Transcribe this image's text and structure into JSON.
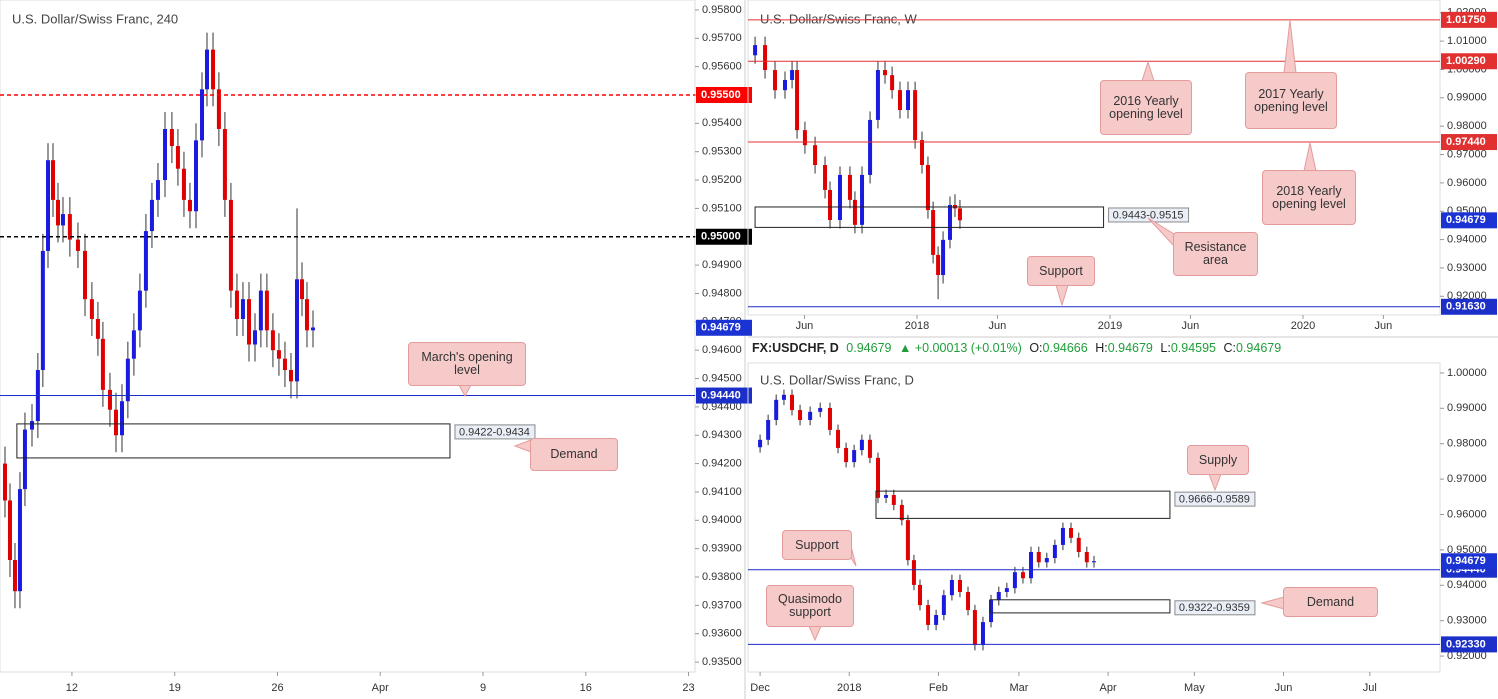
{
  "chart_data": [
    {
      "type": "candlestick",
      "title": "U.S. Dollar/Swiss Franc, 240",
      "up_color": "#1b1be0",
      "down_color": "#e00000",
      "x": [
        7.44,
        7.78,
        8.12,
        8.46,
        8.8,
        9.28,
        9.68,
        10.02,
        10.37,
        10.71,
        11.05,
        11.39,
        11.86,
        12.41,
        12.89,
        13.36,
        13.77,
        14.11,
        14.59,
        15.0,
        15.41,
        15.81,
        16.22,
        16.63,
        17.04,
        17.45,
        17.86,
        18.34,
        18.81,
        19.22,
        19.63,
        20.04,
        20.45,
        20.86,
        21.2,
        21.61,
        22.01,
        22.42,
        22.83,
        23.24,
        23.65,
        24.06,
        24.47,
        24.87,
        25.28,
        25.69,
        26.1,
        26.51,
        26.92,
        27.33,
        27.67,
        28.01,
        28.42
      ],
      "open": [
        0.942,
        0.9407,
        0.9386,
        0.9375,
        0.9411,
        0.9432,
        0.9435,
        0.9453,
        0.9495,
        0.9527,
        0.9513,
        0.9504,
        0.9508,
        0.9499,
        0.9495,
        0.9478,
        0.9471,
        0.9464,
        0.9446,
        0.9439,
        0.943,
        0.9442,
        0.9457,
        0.9467,
        0.9481,
        0.9502,
        0.9513,
        0.952,
        0.9538,
        0.9532,
        0.9524,
        0.9513,
        0.9509,
        0.9534,
        0.9552,
        0.9566,
        0.9552,
        0.9538,
        0.9513,
        0.9481,
        0.9471,
        0.9478,
        0.9462,
        0.9467,
        0.9481,
        0.9467,
        0.946,
        0.9457,
        0.9453,
        0.9449,
        0.9485,
        0.9478,
        0.9467
      ],
      "high": [
        0.9426,
        0.9413,
        0.9392,
        0.9417,
        0.9438,
        0.9441,
        0.9459,
        0.9501,
        0.9533,
        0.9533,
        0.9519,
        0.9514,
        0.9514,
        0.9505,
        0.9501,
        0.9484,
        0.9477,
        0.947,
        0.9452,
        0.9445,
        0.9448,
        0.9463,
        0.9473,
        0.9487,
        0.9508,
        0.9519,
        0.9526,
        0.9544,
        0.9544,
        0.9538,
        0.953,
        0.9519,
        0.954,
        0.9558,
        0.9572,
        0.9572,
        0.9558,
        0.9544,
        0.9519,
        0.9487,
        0.9484,
        0.9484,
        0.9473,
        0.9487,
        0.9487,
        0.9473,
        0.9466,
        0.9463,
        0.9459,
        0.951,
        0.9491,
        0.9484,
        0.9474
      ],
      "low": [
        0.9401,
        0.938,
        0.9369,
        0.9369,
        0.9405,
        0.9426,
        0.9429,
        0.9447,
        0.9489,
        0.9507,
        0.9498,
        0.9498,
        0.9493,
        0.9489,
        0.9472,
        0.9465,
        0.9458,
        0.944,
        0.9433,
        0.9424,
        0.9424,
        0.9436,
        0.9451,
        0.9461,
        0.9475,
        0.9496,
        0.9507,
        0.9514,
        0.9526,
        0.9518,
        0.9507,
        0.9503,
        0.9503,
        0.9528,
        0.9546,
        0.9546,
        0.9532,
        0.9507,
        0.9475,
        0.9465,
        0.9465,
        0.9456,
        0.9456,
        0.9461,
        0.9461,
        0.9454,
        0.9451,
        0.9447,
        0.9443,
        0.9443,
        0.9472,
        0.9461,
        0.9461
      ],
      "close": [
        0.9407,
        0.9386,
        0.9375,
        0.9411,
        0.9432,
        0.9435,
        0.9453,
        0.9495,
        0.9527,
        0.9513,
        0.9504,
        0.9508,
        0.9499,
        0.9495,
        0.9478,
        0.9471,
        0.9464,
        0.9446,
        0.9439,
        0.943,
        0.9442,
        0.9457,
        0.9467,
        0.9481,
        0.9502,
        0.9513,
        0.952,
        0.9538,
        0.9532,
        0.9524,
        0.9513,
        0.9509,
        0.9534,
        0.9552,
        0.9566,
        0.9552,
        0.9538,
        0.9513,
        0.9481,
        0.9471,
        0.9478,
        0.9462,
        0.9467,
        0.9481,
        0.9467,
        0.946,
        0.9457,
        0.9453,
        0.9449,
        0.9485,
        0.9478,
        0.9467,
        0.9468
      ],
      "xlim": [
        7.1,
        54.44
      ],
      "xticks": [
        12,
        19,
        26,
        {
          "value": 33,
          "label": "Apr"
        },
        {
          "value": 40,
          "label": "9"
        },
        {
          "value": 47,
          "label": "16"
        },
        {
          "value": 54,
          "label": "23"
        }
      ],
      "ylim": [
        0.93465,
        0.95835
      ],
      "yticks": [
        {
          "value": 0.935,
          "label": "0.93500"
        },
        {
          "value": 0.936,
          "label": "0.93600"
        },
        {
          "value": 0.937,
          "label": "0.93700"
        },
        {
          "value": 0.938,
          "label": "0.93800"
        },
        {
          "value": 0.939,
          "label": "0.93900"
        },
        {
          "value": 0.94,
          "label": "0.94000"
        },
        {
          "value": 0.941,
          "label": "0.94100"
        },
        {
          "value": 0.942,
          "label": "0.94200"
        },
        {
          "value": 0.943,
          "label": "0.94300"
        },
        {
          "value": 0.944,
          "label": "0.94400"
        },
        {
          "value": 0.945,
          "label": "0.94500"
        },
        {
          "value": 0.946,
          "label": "0.94600"
        },
        {
          "value": 0.947,
          "label": "0.94700"
        },
        {
          "value": 0.948,
          "label": "0.94800"
        },
        {
          "value": 0.949,
          "label": "0.94900"
        },
        {
          "value": 0.95,
          "label": "0.95000"
        },
        {
          "value": 0.951,
          "label": "0.95100"
        },
        {
          "value": 0.952,
          "label": "0.95200"
        },
        {
          "value": 0.953,
          "label": "0.95300"
        },
        {
          "value": 0.954,
          "label": "0.95400"
        },
        {
          "value": 0.955,
          "label": "0.95500"
        },
        {
          "value": 0.956,
          "label": "0.95600"
        },
        {
          "value": 0.957,
          "label": "0.95700"
        },
        {
          "value": 0.958,
          "label": "0.95800"
        }
      ],
      "levels": [
        {
          "value": 0.955,
          "label": "0.95500",
          "color": "#ff0000",
          "dash": true,
          "line": true
        },
        {
          "value": 0.95,
          "label": "0.95000",
          "color": "#000000",
          "dash": true,
          "line": true
        },
        {
          "value": 0.9444,
          "label": "0.94440",
          "color": "#1c2fc8",
          "dash": false,
          "line": true
        },
        {
          "value": 0.94679,
          "label": "0.94679",
          "color": "#1c33d4",
          "dash": false,
          "line": false
        }
      ],
      "zones": [
        {
          "low": 0.9422,
          "high": 0.9434,
          "x0": 8.25,
          "x1": 37.75,
          "label": "0.9422-0.9434"
        }
      ],
      "annotations": [
        "March's opening level",
        "Demand"
      ]
    },
    {
      "type": "candlestick",
      "title": "U.S. Dollar/Swiss Franc, W",
      "up_color": "#1b1be0",
      "down_color": "#e00000",
      "x": [
        1.93,
        2.55,
        3.17,
        3.79,
        4.23,
        4.54,
        5.03,
        5.66,
        6.28,
        6.59,
        7.21,
        7.83,
        8.14,
        8.58,
        9.08,
        9.57,
        10.01,
        10.45,
        10.94,
        11.44,
        11.88,
        12.31,
        12.68,
        13.0,
        13.31,
        13.62,
        14.05,
        14.36,
        14.67
      ],
      "open": [
        1.005,
        1.0086,
        0.9998,
        0.9927,
        0.9963,
        0.9998,
        0.9786,
        0.9733,
        0.9663,
        0.9575,
        0.9469,
        0.9628,
        0.954,
        0.9452,
        0.9628,
        0.9822,
        0.9998,
        0.998,
        0.9927,
        0.9857,
        0.9927,
        0.9751,
        0.9663,
        0.9504,
        0.9346,
        0.9275,
        0.9399,
        0.9522,
        0.951
      ],
      "high": [
        1.0116,
        1.0116,
        1.0028,
        0.9993,
        1.0028,
        1.0028,
        0.9816,
        0.9763,
        0.9693,
        0.9605,
        0.9658,
        0.9658,
        0.957,
        0.9658,
        0.9852,
        1.0028,
        1.0028,
        1.001,
        0.9957,
        0.9957,
        0.9957,
        0.9781,
        0.9693,
        0.9534,
        0.9376,
        0.9429,
        0.9552,
        0.956,
        0.954
      ],
      "low": [
        1.002,
        0.9968,
        0.9897,
        0.9897,
        0.9933,
        0.9756,
        0.9703,
        0.9633,
        0.9545,
        0.9439,
        0.9439,
        0.951,
        0.9422,
        0.9422,
        0.9598,
        0.9792,
        0.995,
        0.9897,
        0.9827,
        0.9827,
        0.9721,
        0.9633,
        0.9474,
        0.9316,
        0.919,
        0.9245,
        0.9369,
        0.948,
        0.9438
      ],
      "close": [
        1.0086,
        0.9998,
        0.9927,
        0.9963,
        0.9998,
        0.9786,
        0.9733,
        0.9663,
        0.9575,
        0.9469,
        0.9628,
        0.954,
        0.9452,
        0.9628,
        0.9822,
        0.9998,
        0.998,
        0.9927,
        0.9857,
        0.9927,
        0.9751,
        0.9663,
        0.9504,
        0.9346,
        0.9275,
        0.9399,
        0.9522,
        0.951,
        0.9468
      ],
      "xlim": [
        1.49,
        44.52
      ],
      "xticks": [
        {
          "value": 5,
          "label": "Jun"
        },
        {
          "value": 12,
          "label": "2018"
        },
        {
          "value": 17,
          "label": "Jun"
        },
        {
          "value": 24,
          "label": "2019"
        },
        {
          "value": 29,
          "label": "Jun"
        },
        {
          "value": 36,
          "label": "2020"
        },
        {
          "value": 41,
          "label": "Jun"
        }
      ],
      "ylim": [
        0.9134,
        1.0245
      ],
      "yticks": [
        {
          "value": 0.92,
          "label": "0.92000"
        },
        {
          "value": 0.93,
          "label": "0.93000"
        },
        {
          "value": 0.94,
          "label": "0.94000"
        },
        {
          "value": 0.95,
          "label": "0.95000"
        },
        {
          "value": 0.96,
          "label": "0.96000"
        },
        {
          "value": 0.97,
          "label": "0.97000"
        },
        {
          "value": 0.98,
          "label": "0.98000"
        },
        {
          "value": 0.99,
          "label": "0.99000"
        },
        {
          "value": 1,
          "label": "1.00000"
        },
        {
          "value": 1.01,
          "label": "1.01000"
        },
        {
          "value": 1.02,
          "label": "1.02000"
        }
      ],
      "levels": [
        {
          "value": 1.0175,
          "label": "1.01750",
          "color": "#e03030",
          "dash": false,
          "line": true
        },
        {
          "value": 1.0029,
          "label": "1.00290",
          "color": "#e03030",
          "dash": false,
          "line": true
        },
        {
          "value": 0.9744,
          "label": "0.97440",
          "color": "#e03030",
          "dash": false,
          "line": true
        },
        {
          "value": 0.9163,
          "label": "0.91630",
          "color": "#1c2fc8",
          "dash": false,
          "line": true
        },
        {
          "value": 0.94679,
          "label": "0.94679",
          "color": "#1c33d4",
          "dash": false,
          "line": false
        }
      ],
      "zones": [
        {
          "low": 0.9443,
          "high": 0.9515,
          "x0": 1.93,
          "x1": 23.6,
          "label": "0.9443-0.9515"
        }
      ],
      "annotations": [
        "2016 Yearly opening level",
        "2017 Yearly opening level",
        "2018 Yearly opening level",
        "Resistance area",
        "Support"
      ]
    },
    {
      "type": "candlestick",
      "title": "U.S. Dollar/Swiss Franc, D",
      "up_color": "#1b1be0",
      "down_color": "#e00000",
      "x": [
        0,
        2.8,
        5.6,
        8.3,
        11.1,
        13.9,
        17.4,
        20.9,
        24.3,
        27.1,
        29.9,
        32.7,
        35.4,
        38.2,
        41.0,
        43.8,
        46.5,
        49.3,
        51.4,
        53.5,
        55.6,
        58.4,
        61.2,
        63.9,
        66.7,
        69.5,
        72.3,
        74.7,
        77.5,
        80.3,
        83.0,
        85.8,
        88.6,
        91.4,
        94.2,
        96.9,
        99.7,
        102.5,
        105.3,
        108.1,
        110.8,
        113.6,
        116.1
      ],
      "open": [
        0.979,
        0.9811,
        0.9867,
        0.9924,
        0.9938,
        0.9895,
        0.9867,
        0.989,
        0.9901,
        0.9839,
        0.9788,
        0.9748,
        0.9782,
        0.9811,
        0.976,
        0.9647,
        0.9655,
        0.9627,
        0.9584,
        0.9471,
        0.9401,
        0.9344,
        0.9288,
        0.9316,
        0.9372,
        0.9415,
        0.9381,
        0.933,
        0.9231,
        0.9296,
        0.9358,
        0.9381,
        0.9392,
        0.9437,
        0.942,
        0.9494,
        0.9465,
        0.9477,
        0.9514,
        0.9562,
        0.9534,
        0.9494,
        0.9465
      ],
      "high": [
        0.9826,
        0.9882,
        0.9939,
        0.9953,
        0.9953,
        0.991,
        0.9905,
        0.9916,
        0.9916,
        0.9854,
        0.9803,
        0.9797,
        0.9826,
        0.9826,
        0.9775,
        0.967,
        0.967,
        0.9642,
        0.9599,
        0.9486,
        0.9416,
        0.9359,
        0.9331,
        0.9387,
        0.943,
        0.943,
        0.9396,
        0.9345,
        0.9311,
        0.9373,
        0.9396,
        0.9407,
        0.9452,
        0.9452,
        0.9509,
        0.9509,
        0.9492,
        0.9529,
        0.9577,
        0.9577,
        0.9549,
        0.9509,
        0.9483
      ],
      "low": [
        0.9775,
        0.9796,
        0.9852,
        0.9909,
        0.988,
        0.9852,
        0.9852,
        0.9875,
        0.9824,
        0.9773,
        0.9733,
        0.9733,
        0.9767,
        0.9745,
        0.9632,
        0.9632,
        0.9612,
        0.9569,
        0.9456,
        0.9386,
        0.9329,
        0.9273,
        0.9273,
        0.9301,
        0.9357,
        0.9366,
        0.9315,
        0.9216,
        0.9216,
        0.9281,
        0.9343,
        0.9366,
        0.9377,
        0.9405,
        0.9405,
        0.945,
        0.945,
        0.9462,
        0.9499,
        0.9519,
        0.9479,
        0.945,
        0.945
      ],
      "close": [
        0.9811,
        0.9867,
        0.9924,
        0.9938,
        0.9895,
        0.9867,
        0.989,
        0.9901,
        0.9839,
        0.9788,
        0.9748,
        0.9782,
        0.9811,
        0.976,
        0.9647,
        0.9655,
        0.9627,
        0.9584,
        0.9471,
        0.9401,
        0.9344,
        0.9288,
        0.9316,
        0.9372,
        0.9415,
        0.9381,
        0.933,
        0.9231,
        0.9296,
        0.9358,
        0.9381,
        0.9392,
        0.9437,
        0.942,
        0.9494,
        0.9465,
        0.9477,
        0.9514,
        0.9562,
        0.9534,
        0.9494,
        0.9465,
        0.9468
      ],
      "xlim": [
        -4.2,
        236.4
      ],
      "xticks": [
        {
          "value": 0,
          "label": "Dec"
        },
        {
          "value": 31,
          "label": "2018"
        },
        {
          "value": 62,
          "label": "Feb"
        },
        {
          "value": 90,
          "label": "Mar"
        },
        {
          "value": 121,
          "label": "Apr"
        },
        {
          "value": 151,
          "label": "May"
        },
        {
          "value": 182,
          "label": "Jun"
        },
        {
          "value": 212,
          "label": "Jul"
        }
      ],
      "ylim": [
        0.9155,
        1.0028
      ],
      "yticks": [
        {
          "value": 0.92,
          "label": "0.92000"
        },
        {
          "value": 0.93,
          "label": "0.93000"
        },
        {
          "value": 0.94,
          "label": "0.94000"
        },
        {
          "value": 0.95,
          "label": "0.95000"
        },
        {
          "value": 0.96,
          "label": "0.96000"
        },
        {
          "value": 0.97,
          "label": "0.97000"
        },
        {
          "value": 0.98,
          "label": "0.98000"
        },
        {
          "value": 0.99,
          "label": "0.99000"
        },
        {
          "value": 1,
          "label": "1.00000"
        }
      ],
      "levels": [
        {
          "value": 0.9444,
          "label": "0.94440",
          "color": "#1c2fc8",
          "dash": false,
          "line": true
        },
        {
          "value": 0.9233,
          "label": "0.92330",
          "color": "#1c2fc8",
          "dash": false,
          "line": true
        },
        {
          "value": 0.94679,
          "label": "0.94679",
          "color": "#1c33d4",
          "dash": false,
          "line": false
        }
      ],
      "zones": [
        {
          "low": 0.9589,
          "high": 0.9666,
          "x0": 40.3,
          "x1": 142.5,
          "label": "0.9666-0.9589"
        },
        {
          "low": 0.9322,
          "high": 0.9359,
          "x0": 79.9,
          "x1": 142.5,
          "label": "0.9322-0.9359"
        }
      ],
      "annotations": [
        "Supply",
        "Support",
        "Quasimodo support",
        "Demand"
      ]
    }
  ],
  "info_bar": {
    "symbol": "FX:USDCHF, D",
    "last": "0.94679",
    "change": "▲ +0.00013 (+0.01%)",
    "open": {
      "label": "O:",
      "value": "0.94666"
    },
    "high": {
      "label": "H:",
      "value": "0.94679"
    },
    "low": {
      "label": "L:",
      "value": "0.94595"
    },
    "close": {
      "label": "C:",
      "value": "0.94679"
    }
  }
}
